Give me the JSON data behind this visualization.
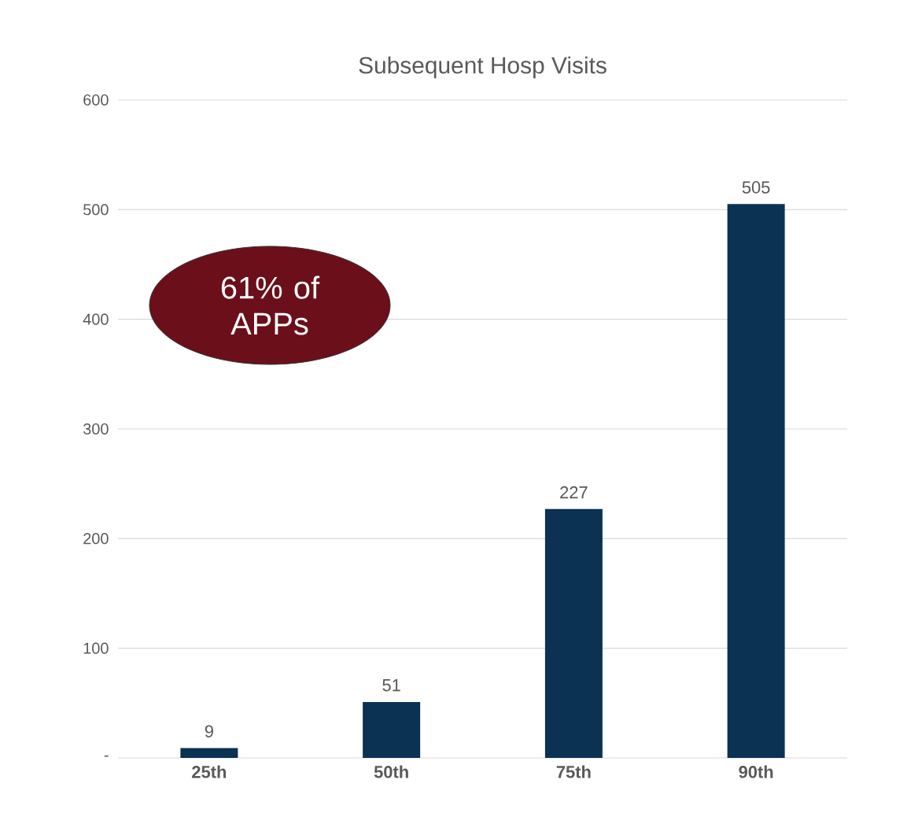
{
  "chart_data": {
    "type": "bar",
    "title": "Subsequent Hosp Visits",
    "categories": [
      "25th",
      "50th",
      "75th",
      "90th"
    ],
    "values": [
      9,
      51,
      227,
      505
    ],
    "color": "#0b3153",
    "ylim": [
      0,
      600
    ],
    "yticks": [
      {
        "value": 0,
        "label": "-"
      },
      100,
      200,
      300,
      400,
      500,
      600
    ],
    "grid": "y",
    "data_labels": true,
    "annotations": [
      "61% of APPs"
    ]
  }
}
